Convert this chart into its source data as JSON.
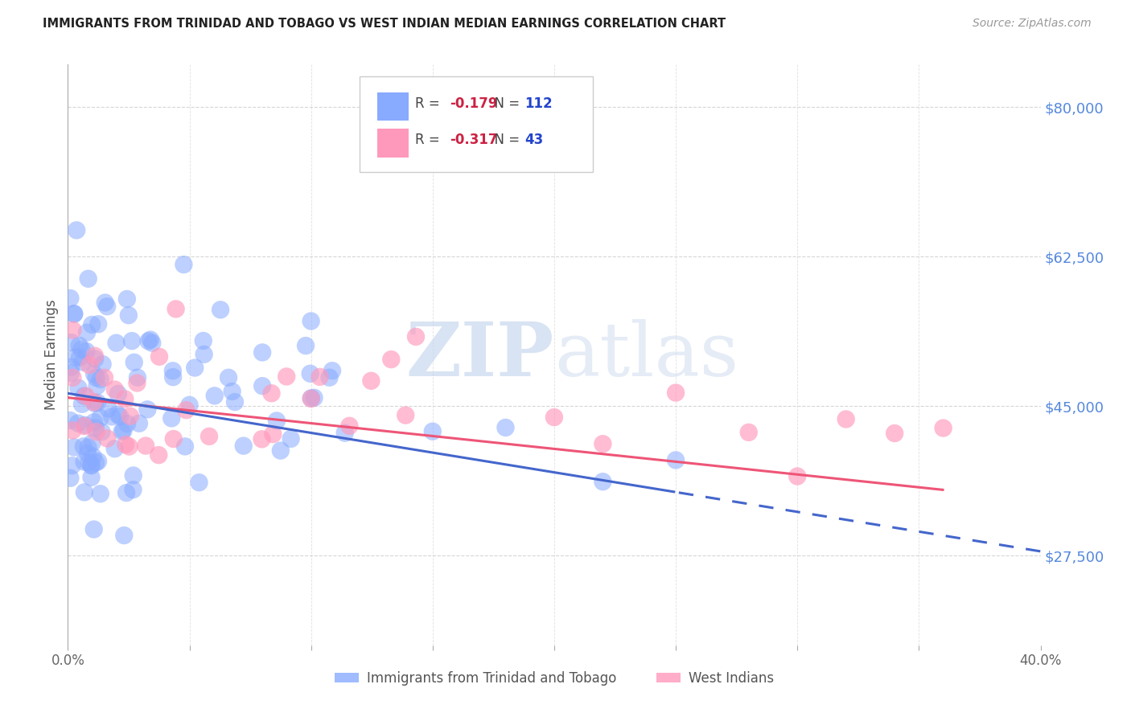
{
  "title": "IMMIGRANTS FROM TRINIDAD AND TOBAGO VS WEST INDIAN MEDIAN EARNINGS CORRELATION CHART",
  "source": "Source: ZipAtlas.com",
  "ylabel": "Median Earnings",
  "yticks": [
    27500,
    45000,
    62500,
    80000
  ],
  "ytick_labels": [
    "$27,500",
    "$45,000",
    "$62,500",
    "$80,000"
  ],
  "xmin": 0.0,
  "xmax": 0.4,
  "ymin": 17000,
  "ymax": 85000,
  "series1_label": "Immigrants from Trinidad and Tobago",
  "series1_R": "-0.179",
  "series1_N": "112",
  "series1_color": "#88aaff",
  "series2_label": "West Indians",
  "series2_R": "-0.317",
  "series2_N": "43",
  "series2_color": "#ff99bb",
  "line1_color": "#4466cc",
  "line2_color": "#ee5577",
  "background_color": "#ffffff",
  "grid_color": "#cccccc",
  "watermark_zip": "ZIP",
  "watermark_atlas": "atlas",
  "title_color": "#222222",
  "axis_label_color": "#5588dd",
  "legend_R_color": "#cc2244",
  "legend_N_color": "#2244cc"
}
